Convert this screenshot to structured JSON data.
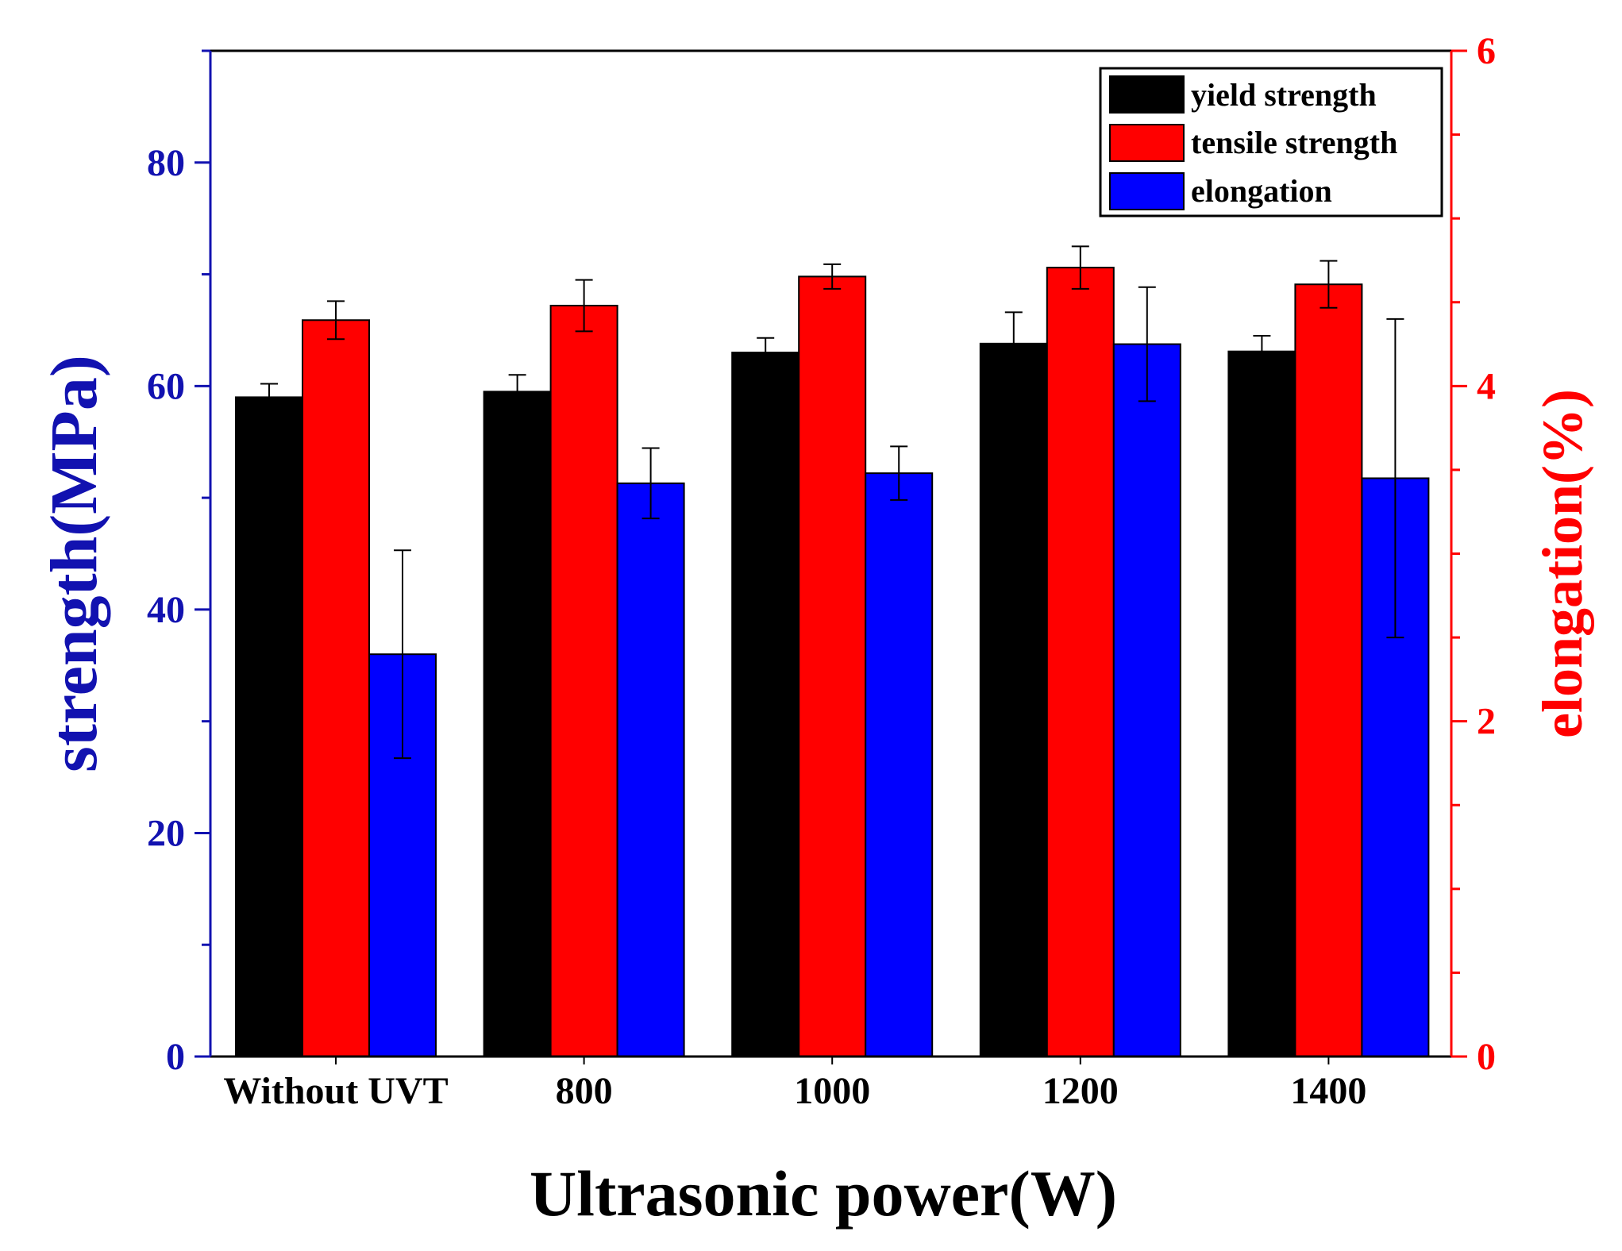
{
  "chart_data": {
    "type": "bar",
    "xlabel": "Ultrasonic power(W)",
    "ylabel_left": "strength(MPa)",
    "ylabel_right": "elongation(%)",
    "categories": [
      "Without UVT",
      "800",
      "1000",
      "1200",
      "1400"
    ],
    "ylim_left": [
      0,
      90
    ],
    "ylim_right": [
      0,
      6
    ],
    "left_ticks": [
      0,
      20,
      40,
      60,
      80
    ],
    "right_ticks": [
      0,
      2,
      4,
      6
    ],
    "grid": false,
    "legend_position": "top-right",
    "series": [
      {
        "name": "yield strength",
        "axis": "left",
        "color": "#000000",
        "values": [
          59,
          59.5,
          63,
          63.8,
          63.1
        ],
        "errors": [
          1.2,
          1.5,
          1.3,
          2.8,
          1.4
        ]
      },
      {
        "name": "tensile strength",
        "axis": "left",
        "color": "#ff0000",
        "values": [
          65.9,
          67.2,
          69.8,
          70.6,
          69.1
        ],
        "errors": [
          1.7,
          2.3,
          1.1,
          1.9,
          2.1
        ]
      },
      {
        "name": "elongation",
        "axis": "right",
        "color": "#0000ff",
        "values": [
          2.4,
          3.42,
          3.48,
          4.25,
          3.45
        ],
        "errors": [
          0.62,
          0.21,
          0.16,
          0.34,
          0.95
        ]
      }
    ],
    "colors": {
      "left_axis": "#1212b0",
      "right_axis": "#ff0000",
      "frame": "#000000"
    }
  }
}
